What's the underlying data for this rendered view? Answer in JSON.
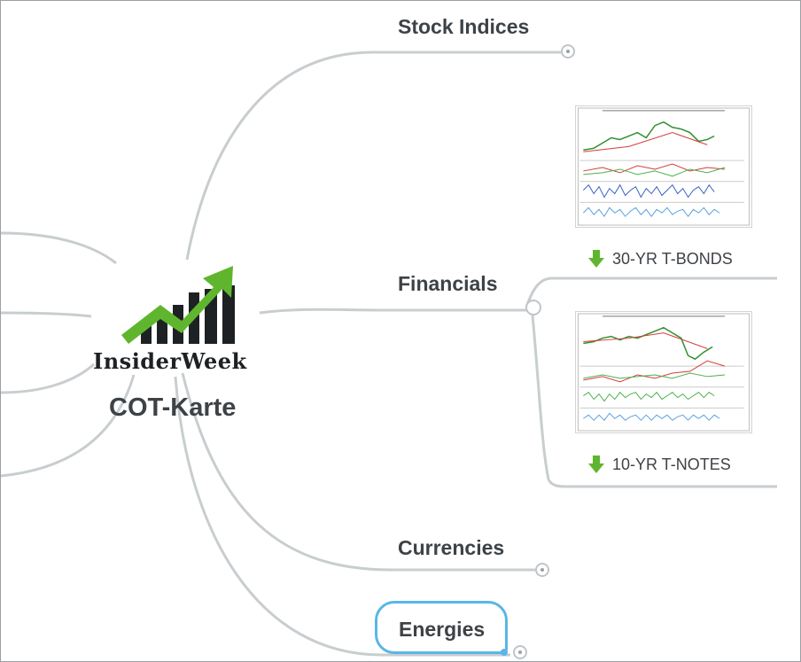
{
  "central": {
    "logo_text": "InsiderWeek",
    "title": "COT-Karte"
  },
  "branches": {
    "stock_indices": "Stock Indices",
    "financials": "Financials",
    "currencies": "Currencies",
    "energies": "Energies"
  },
  "financials_children": [
    {
      "caption": "30-YR T-BONDS",
      "icon": "green-down-arrow-icon"
    },
    {
      "caption": "10-YR T-NOTES",
      "icon": "green-down-arrow-icon"
    }
  ],
  "colors": {
    "link": "#c8cdd0",
    "text": "#3d4247",
    "selection": "#5ab6e6",
    "logo_green": "#5fb62e",
    "logo_dark": "#1e2124"
  }
}
